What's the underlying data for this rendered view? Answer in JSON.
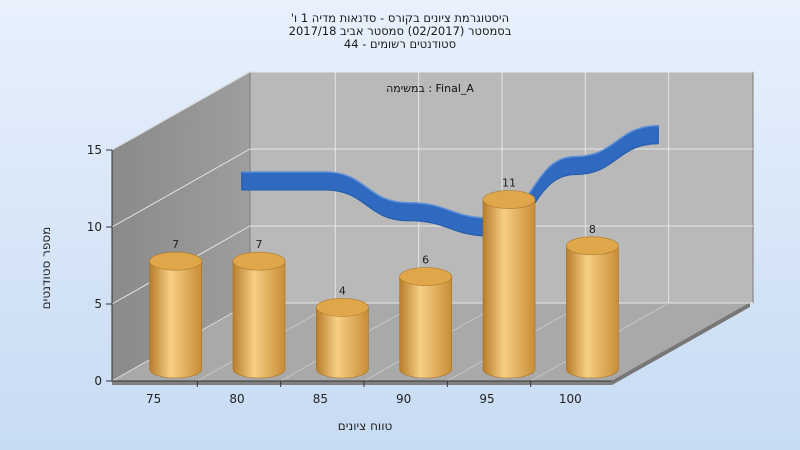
{
  "title_lines": [
    "היסטוגרמת ציונים בקורס - סדנאות מדיה 1 ו'",
    "בסמסטר  (02/2017)  סמסטר אביב 2017/18",
    "סטודנטים רשומים - 44"
  ],
  "colors": {
    "bar": "#e0a64a",
    "wave": "#2f69c0",
    "back_wall": "#b9b9b9",
    "side_wall": "#8c8c8c",
    "floor": "#a9a9a9"
  },
  "chart_data": {
    "type": "bar",
    "title": "היסטוגרמת ציונים בקורס - סדנאות מדיה 1 ו'",
    "annotation": "Final_A : במשימה",
    "xlabel": "טווח ציונים",
    "ylabel": "מספר סטודנטים",
    "x_ticks": [
      "75",
      "80",
      "85",
      "90",
      "95",
      "100"
    ],
    "y_ticks": [
      "0",
      "5",
      "10",
      "15"
    ],
    "ylim": [
      0,
      15
    ],
    "grid": true,
    "categories": [
      "75",
      "80",
      "85",
      "90",
      "95",
      "100"
    ],
    "series": [
      {
        "type": "bar",
        "values": [
          7,
          7,
          4,
          6,
          11,
          8
        ]
      },
      {
        "type": "area",
        "values": [
          10,
          10,
          8,
          7,
          11,
          13
        ]
      }
    ],
    "data_labels": [
      "7",
      "7",
      "4",
      "6",
      "11",
      "8"
    ]
  }
}
